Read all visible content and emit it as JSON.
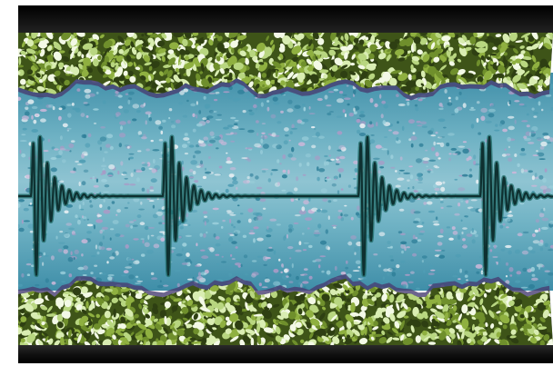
{
  "image": {
    "subject": "waveform-between-textured-bands",
    "palette": {
      "frame_dark": "#0c0c0c",
      "band_green_dark": "#2e3f12",
      "band_green_mid": "#6f8f2c",
      "band_green_light": "#d9edb2",
      "middle_blue": "#4f9db4",
      "middle_blue_light": "#9dd0dc",
      "middle_lavender": "#a89bc6",
      "edge_purple": "#473d72",
      "wave_dark": "#0e3030",
      "wave_teal": "#1f6a66"
    },
    "wave_bursts": 4
  }
}
